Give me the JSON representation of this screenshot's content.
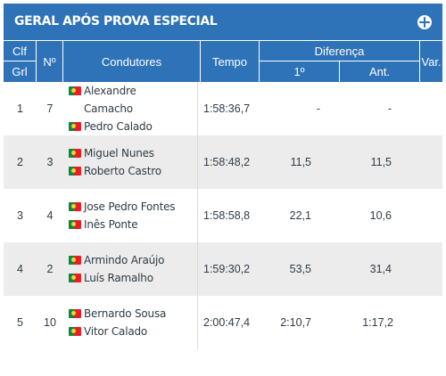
{
  "panel": {
    "title": "GERAL APÓS PROVA ESPECIAL",
    "expand_icon": "plus-circle-icon"
  },
  "colors": {
    "header_blue": "#2e73b8",
    "row_alt": "#ececec",
    "flag": "portugal-flag"
  },
  "headers": {
    "clf": "Clf",
    "grl": "Grl",
    "no": "Nº",
    "drivers": "Condutores",
    "time": "Tempo",
    "difference": "Diferença",
    "diff_first": "1º",
    "diff_prev": "Ant.",
    "var": "Var."
  },
  "rows": [
    {
      "pos": "1",
      "number": "7",
      "driver": "Alexandre Camacho",
      "codriver": "Pedro Calado",
      "time": "1:58:36,7",
      "diff_first": "-",
      "diff_prev": "-",
      "var": ""
    },
    {
      "pos": "2",
      "number": "3",
      "driver": "Miguel Nunes",
      "codriver": "Roberto Castro",
      "time": "1:58:48,2",
      "diff_first": "11,5",
      "diff_prev": "11,5",
      "var": ""
    },
    {
      "pos": "3",
      "number": "4",
      "driver": "Jose Pedro Fontes",
      "codriver": "Inês Ponte",
      "time": "1:58:58,8",
      "diff_first": "22,1",
      "diff_prev": "10,6",
      "var": ""
    },
    {
      "pos": "4",
      "number": "2",
      "driver": "Armindo Araújo",
      "codriver": "Luís Ramalho",
      "time": "1:59:30,2",
      "diff_first": "53,5",
      "diff_prev": "31,4",
      "var": ""
    },
    {
      "pos": "5",
      "number": "10",
      "driver": "Bernardo Sousa",
      "codriver": "Vitor Calado",
      "time": "2:00:47,4",
      "diff_first": "2:10,7",
      "diff_prev": "1:17,2",
      "var": ""
    }
  ]
}
